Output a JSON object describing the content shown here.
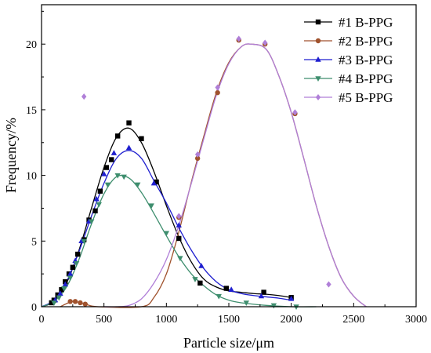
{
  "chart_data": {
    "type": "line",
    "xlabel": "Particle size/μm",
    "ylabel": "Frequency/%",
    "xlim": [
      0,
      3000
    ],
    "ylim": [
      0,
      23
    ],
    "xticks": [
      0,
      500,
      1000,
      1500,
      2000,
      2500,
      3000
    ],
    "yticks": [
      0,
      5,
      10,
      15,
      20
    ],
    "grid": false,
    "legend_position": "top-right",
    "series": [
      {
        "name": "#1 B-PPG",
        "color": "#000000",
        "marker": "square",
        "points": [
          [
            80,
            0.3
          ],
          [
            100,
            0.5
          ],
          [
            130,
            0.9
          ],
          [
            160,
            1.3
          ],
          [
            190,
            1.9
          ],
          [
            220,
            2.5
          ],
          [
            250,
            3.0
          ],
          [
            290,
            4.0
          ],
          [
            340,
            5.1
          ],
          [
            380,
            6.6
          ],
          [
            430,
            7.3
          ],
          [
            470,
            8.8
          ],
          [
            520,
            10.6
          ],
          [
            560,
            11.2
          ],
          [
            610,
            13.0
          ],
          [
            700,
            14.0
          ],
          [
            800,
            12.8
          ],
          [
            920,
            9.5
          ],
          [
            1100,
            5.2
          ],
          [
            1270,
            1.8
          ],
          [
            1480,
            1.4
          ],
          [
            1780,
            1.1
          ],
          [
            2000,
            0.7
          ]
        ],
        "curve": [
          [
            0,
            0
          ],
          [
            100,
            0.4
          ],
          [
            200,
            1.8
          ],
          [
            300,
            4.3
          ],
          [
            400,
            7.5
          ],
          [
            500,
            10.6
          ],
          [
            600,
            12.9
          ],
          [
            700,
            13.6
          ],
          [
            800,
            12.5
          ],
          [
            900,
            10.3
          ],
          [
            1000,
            7.7
          ],
          [
            1100,
            5.3
          ],
          [
            1200,
            3.4
          ],
          [
            1300,
            2.1
          ],
          [
            1400,
            1.5
          ],
          [
            1500,
            1.2
          ],
          [
            1600,
            1.1
          ],
          [
            1700,
            1.0
          ],
          [
            1800,
            0.95
          ],
          [
            1900,
            0.85
          ],
          [
            2000,
            0.7
          ]
        ]
      },
      {
        "name": "#2 B-PPG",
        "color": "#a0522d",
        "marker": "circle",
        "points": [
          [
            230,
            0.4
          ],
          [
            270,
            0.4
          ],
          [
            310,
            0.3
          ],
          [
            350,
            0.2
          ],
          [
            1100,
            6.8
          ],
          [
            1250,
            11.3
          ],
          [
            1410,
            16.3
          ],
          [
            1580,
            20.3
          ],
          [
            1790,
            20.0
          ],
          [
            2030,
            14.7
          ]
        ],
        "curve": [
          [
            150,
            0
          ],
          [
            250,
            0.4
          ],
          [
            350,
            0.2
          ],
          [
            450,
            0
          ],
          [
            800,
            0
          ],
          [
            900,
            0.7
          ],
          [
            1000,
            2.5
          ],
          [
            1100,
            5.7
          ],
          [
            1200,
            9.5
          ],
          [
            1300,
            13.0
          ],
          [
            1400,
            16.3
          ],
          [
            1500,
            18.6
          ],
          [
            1600,
            19.8
          ],
          [
            1680,
            20.0
          ],
          [
            1800,
            19.6
          ],
          [
            1900,
            17.6
          ],
          [
            2000,
            14.8
          ],
          [
            2100,
            11.3
          ],
          [
            2200,
            7.7
          ],
          [
            2300,
            4.6
          ],
          [
            2400,
            2.2
          ],
          [
            2500,
            0.8
          ],
          [
            2600,
            0
          ]
        ]
      },
      {
        "name": "#3 B-PPG",
        "color": "#1f1fcf",
        "marker": "triangle-up",
        "points": [
          [
            110,
            0.5
          ],
          [
            150,
            1.0
          ],
          [
            190,
            1.7
          ],
          [
            230,
            2.5
          ],
          [
            270,
            3.5
          ],
          [
            320,
            5.0
          ],
          [
            380,
            6.5
          ],
          [
            440,
            8.2
          ],
          [
            500,
            10.1
          ],
          [
            580,
            11.7
          ],
          [
            700,
            12.1
          ],
          [
            900,
            9.4
          ],
          [
            1100,
            6.2
          ],
          [
            1280,
            3.1
          ],
          [
            1520,
            1.3
          ],
          [
            1760,
            0.8
          ],
          [
            2000,
            0.6
          ]
        ],
        "curve": [
          [
            0,
            0
          ],
          [
            100,
            0.5
          ],
          [
            200,
            1.9
          ],
          [
            300,
            4.2
          ],
          [
            400,
            6.9
          ],
          [
            500,
            9.4
          ],
          [
            600,
            11.3
          ],
          [
            700,
            11.9
          ],
          [
            800,
            11.3
          ],
          [
            900,
            9.6
          ],
          [
            1000,
            7.9
          ],
          [
            1100,
            6.0
          ],
          [
            1200,
            4.3
          ],
          [
            1300,
            2.9
          ],
          [
            1400,
            1.9
          ],
          [
            1500,
            1.3
          ],
          [
            1600,
            1.0
          ],
          [
            1700,
            0.85
          ],
          [
            1800,
            0.75
          ],
          [
            1900,
            0.65
          ],
          [
            2000,
            0.5
          ]
        ]
      },
      {
        "name": "#4 B-PPG",
        "color": "#3e8e6e",
        "marker": "triangle-down",
        "points": [
          [
            100,
            0.3
          ],
          [
            140,
            0.7
          ],
          [
            180,
            1.4
          ],
          [
            230,
            2.2
          ],
          [
            280,
            3.3
          ],
          [
            340,
            5.0
          ],
          [
            400,
            6.5
          ],
          [
            460,
            7.8
          ],
          [
            530,
            9.3
          ],
          [
            610,
            10.0
          ],
          [
            660,
            9.9
          ],
          [
            770,
            9.3
          ],
          [
            880,
            7.7
          ],
          [
            1000,
            5.6
          ],
          [
            1110,
            3.7
          ],
          [
            1230,
            2.1
          ],
          [
            1420,
            0.8
          ],
          [
            1640,
            0.3
          ],
          [
            1860,
            0.1
          ],
          [
            2040,
            0
          ]
        ],
        "curve": [
          [
            0,
            0
          ],
          [
            100,
            0.4
          ],
          [
            200,
            1.5
          ],
          [
            300,
            3.6
          ],
          [
            400,
            6.3
          ],
          [
            500,
            8.6
          ],
          [
            600,
            9.9
          ],
          [
            700,
            9.8
          ],
          [
            800,
            8.7
          ],
          [
            900,
            7.1
          ],
          [
            1000,
            5.4
          ],
          [
            1100,
            3.8
          ],
          [
            1200,
            2.5
          ],
          [
            1300,
            1.6
          ],
          [
            1400,
            0.9
          ],
          [
            1500,
            0.5
          ],
          [
            1600,
            0.3
          ],
          [
            1800,
            0.1
          ],
          [
            2000,
            0
          ],
          [
            2200,
            0
          ]
        ]
      },
      {
        "name": "#5 B-PPG",
        "color": "#b07fd8",
        "marker": "diamond",
        "points": [
          [
            340,
            16.0
          ],
          [
            1100,
            6.9
          ],
          [
            1250,
            11.6
          ],
          [
            1410,
            16.7
          ],
          [
            1580,
            20.4
          ],
          [
            1790,
            20.1
          ],
          [
            2030,
            14.8
          ],
          [
            2300,
            1.7
          ]
        ],
        "curve": [
          [
            500,
            0
          ],
          [
            600,
            0
          ],
          [
            700,
            0.1
          ],
          [
            800,
            0.6
          ],
          [
            900,
            1.8
          ],
          [
            1000,
            3.6
          ],
          [
            1100,
            6.2
          ],
          [
            1200,
            9.4
          ],
          [
            1300,
            12.8
          ],
          [
            1400,
            16.1
          ],
          [
            1500,
            18.5
          ],
          [
            1600,
            19.8
          ],
          [
            1680,
            20.0
          ],
          [
            1800,
            19.6
          ],
          [
            1900,
            17.6
          ],
          [
            2000,
            14.8
          ],
          [
            2100,
            11.3
          ],
          [
            2200,
            7.7
          ],
          [
            2300,
            4.6
          ],
          [
            2400,
            2.2
          ],
          [
            2500,
            0.8
          ],
          [
            2600,
            0
          ]
        ]
      }
    ]
  }
}
